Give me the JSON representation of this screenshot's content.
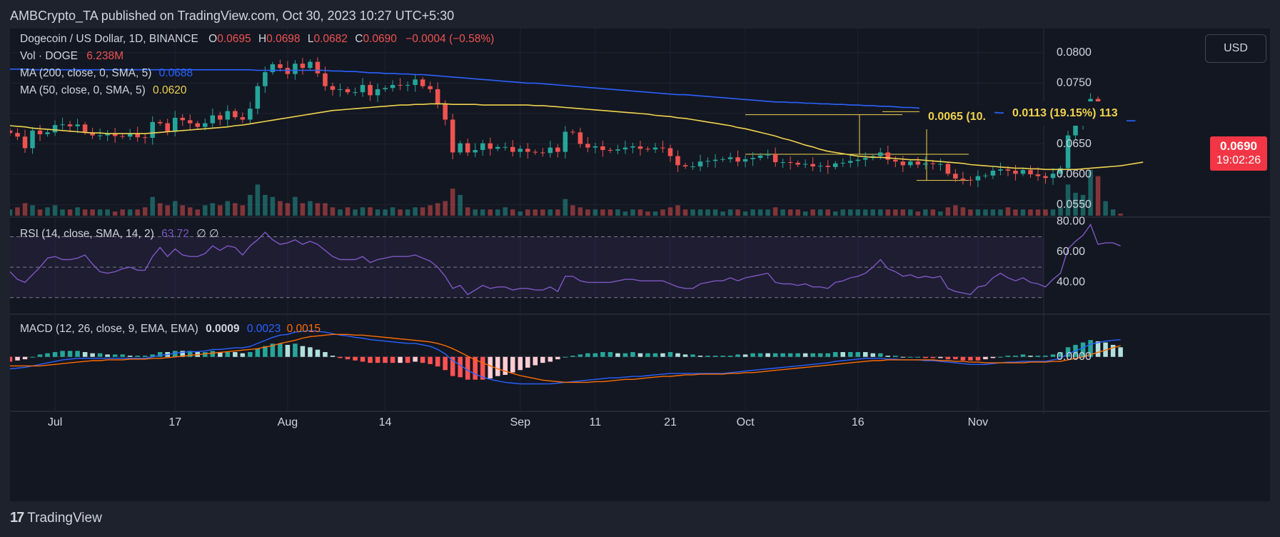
{
  "header": {
    "published": "AMBCrypto_TA published on TradingView.com, Oct 30, 2023 10:27 UTC+5:30"
  },
  "footer": {
    "brand": "TradingView",
    "logo_mark": "17"
  },
  "currency_button": "USD",
  "colors": {
    "bg": "#131722",
    "up": "#26a69a",
    "down": "#ef5350",
    "ma200": "#2962ff",
    "ma50": "#f0d34c",
    "rsi": "#7e57c2",
    "macd": "#2962ff",
    "signal": "#ff6d00",
    "hist_up_strong": "#26a69a",
    "hist_up_weak": "#b2dfdb",
    "hist_dn_strong": "#ff5252",
    "hist_dn_weak": "#ffcdd2"
  },
  "legend": {
    "symbol": "Dogecoin / US Dollar, 1D, BINANCE",
    "o_label": "O",
    "o": "0.0695",
    "h_label": "H",
    "h": "0.0698",
    "l_label": "L",
    "l": "0.0682",
    "c_label": "C",
    "c": "0.0690",
    "change": "−0.0004 (−0.58%)",
    "vol_label": "Vol · DOGE",
    "vol": "6.238M",
    "ma200_label": "MA (200, close, 0, SMA, 5)",
    "ma200": "0.0688",
    "ma50_label": "MA (50, close, 0, SMA, 5)",
    "ma50": "0.0620",
    "rsi_label": "RSI (14, close, SMA, 14, 2)",
    "rsi": "63.72",
    "rsi_extra": "∅  ∅",
    "macd_label": "MACD (12, 26, close, 9, EMA, EMA)",
    "macd": "0.0009",
    "macd_line": "0.0023",
    "macd_signal": "0.0015"
  },
  "price_tag": {
    "price": "0.0690",
    "countdown": "19:02:26"
  },
  "measure_labels": [
    "0.0065 (10.",
    "0.0113 (19.15%) 113"
  ],
  "chart_data": {
    "type": "candlestick",
    "title": "Dogecoin / US Dollar, 1D, BINANCE",
    "x_range": [
      "2023-06-25",
      "2023-11-09"
    ],
    "x_ticks": [
      {
        "date": "2023-07-01",
        "label": "Jul"
      },
      {
        "date": "2023-07-17",
        "label": "17"
      },
      {
        "date": "2023-08-01",
        "label": "Aug"
      },
      {
        "date": "2023-08-14",
        "label": "14"
      },
      {
        "date": "2023-09-01",
        "label": "Sep"
      },
      {
        "date": "2023-09-11",
        "label": "11"
      },
      {
        "date": "2023-09-21",
        "label": "21"
      },
      {
        "date": "2023-10-01",
        "label": "Oct"
      },
      {
        "date": "2023-10-16",
        "label": "16"
      },
      {
        "date": "2023-11-01",
        "label": "Nov"
      }
    ],
    "price_axis": {
      "ylim": [
        0.0532,
        0.0828
      ],
      "ticks": [
        "0.0800",
        "0.0750",
        "0.0700",
        "0.0650",
        "0.0600",
        "0.0550"
      ]
    },
    "rsi_axis": {
      "ylim": [
        20,
        82
      ],
      "ticks": [
        "80.00",
        "60.00",
        "40.00"
      ],
      "bands": [
        30,
        70
      ],
      "mid": 50
    },
    "macd_axis": {
      "ylim": [
        -0.0065,
        0.0055
      ],
      "ticks": [
        "0.0000"
      ]
    },
    "close": [
      0.0668,
      0.0662,
      0.0643,
      0.0672,
      0.0666,
      0.0669,
      0.0681,
      0.0682,
      0.0679,
      0.0682,
      0.0669,
      0.0664,
      0.0664,
      0.0667,
      0.0663,
      0.0662,
      0.0667,
      0.0661,
      0.066,
      0.0686,
      0.0684,
      0.067,
      0.0693,
      0.0689,
      0.0684,
      0.0678,
      0.0684,
      0.0697,
      0.069,
      0.0704,
      0.0694,
      0.069,
      0.0708,
      0.0745,
      0.0768,
      0.0781,
      0.0775,
      0.0765,
      0.0782,
      0.0775,
      0.0785,
      0.0766,
      0.0745,
      0.0739,
      0.074,
      0.0735,
      0.0735,
      0.0747,
      0.073,
      0.074,
      0.0742,
      0.0747,
      0.0746,
      0.0747,
      0.0756,
      0.0745,
      0.074,
      0.0716,
      0.069,
      0.0636,
      0.0651,
      0.0636,
      0.064,
      0.0651,
      0.0642,
      0.0645,
      0.0645,
      0.0637,
      0.0642,
      0.0637,
      0.0636,
      0.0635,
      0.0644,
      0.0637,
      0.067,
      0.0669,
      0.065,
      0.0644,
      0.0646,
      0.064,
      0.0639,
      0.0641,
      0.0644,
      0.0646,
      0.0642,
      0.0641,
      0.0644,
      0.0643,
      0.063,
      0.0615,
      0.0613,
      0.0613,
      0.0621,
      0.0622,
      0.0624,
      0.0625,
      0.0628,
      0.0621,
      0.0625,
      0.0627,
      0.0631,
      0.0633,
      0.062,
      0.062,
      0.0619,
      0.0616,
      0.0617,
      0.0613,
      0.0614,
      0.0612,
      0.0618,
      0.0619,
      0.0622,
      0.0624,
      0.0627,
      0.063,
      0.0636,
      0.0624,
      0.0621,
      0.0615,
      0.0621,
      0.0616,
      0.0618,
      0.0617,
      0.0617,
      0.0601,
      0.0593,
      0.0591,
      0.059,
      0.0597,
      0.0598,
      0.0606,
      0.0608,
      0.0606,
      0.0601,
      0.0607,
      0.06,
      0.0597,
      0.0594,
      0.0601,
      0.061,
      0.0664,
      0.0683,
      0.0698,
      0.0724,
      0.0689,
      0.0692,
      0.0696,
      0.069
    ],
    "open_offsets_note": "",
    "volume_rel": [
      0.3,
      0.4,
      0.6,
      0.5,
      0.3,
      0.4,
      0.5,
      0.3,
      0.3,
      0.4,
      0.3,
      0.3,
      0.3,
      0.3,
      0.2,
      0.3,
      0.3,
      0.3,
      0.4,
      0.9,
      0.6,
      0.5,
      0.7,
      0.5,
      0.4,
      0.3,
      0.5,
      0.6,
      0.5,
      0.7,
      0.6,
      0.5,
      1.0,
      1.5,
      1.0,
      0.9,
      0.7,
      0.6,
      0.9,
      0.6,
      0.7,
      0.6,
      0.6,
      0.4,
      0.3,
      0.4,
      0.3,
      0.4,
      0.4,
      0.3,
      0.3,
      0.4,
      0.3,
      0.3,
      0.4,
      0.4,
      0.5,
      0.6,
      0.7,
      1.3,
      1.0,
      0.4,
      0.3,
      0.3,
      0.3,
      0.3,
      0.4,
      0.3,
      0.2,
      0.3,
      0.3,
      0.3,
      0.3,
      0.3,
      0.8,
      0.5,
      0.4,
      0.3,
      0.3,
      0.3,
      0.3,
      0.3,
      0.2,
      0.3,
      0.3,
      0.2,
      0.2,
      0.3,
      0.4,
      0.5,
      0.3,
      0.3,
      0.3,
      0.3,
      0.3,
      0.2,
      0.3,
      0.3,
      0.2,
      0.3,
      0.3,
      0.3,
      0.4,
      0.3,
      0.3,
      0.3,
      0.2,
      0.3,
      0.3,
      0.3,
      0.2,
      0.3,
      0.3,
      0.3,
      0.3,
      0.3,
      0.3,
      0.3,
      0.3,
      0.3,
      0.3,
      0.2,
      0.3,
      0.3,
      0.2,
      0.4,
      0.5,
      0.4,
      0.3,
      0.3,
      0.3,
      0.3,
      0.3,
      0.4,
      0.3,
      0.3,
      0.3,
      0.3,
      0.3,
      0.3,
      0.4,
      1.5,
      1.1,
      1.0,
      2.2,
      1.9,
      0.7,
      0.3,
      0.1
    ],
    "ma50": [
      0.068,
      0.0679,
      0.0678,
      0.0676,
      0.0675,
      0.0674,
      0.0673,
      0.0672,
      0.0671,
      0.067,
      0.0669,
      0.0668,
      0.0668,
      0.0667,
      0.0667,
      0.0667,
      0.0667,
      0.0667,
      0.0667,
      0.0668,
      0.0669,
      0.067,
      0.0671,
      0.0672,
      0.0673,
      0.0674,
      0.0675,
      0.0676,
      0.0677,
      0.0678,
      0.068,
      0.0681,
      0.0683,
      0.0685,
      0.0687,
      0.0689,
      0.0691,
      0.0693,
      0.0695,
      0.0697,
      0.0699,
      0.0701,
      0.0703,
      0.0705,
      0.0706,
      0.0707,
      0.0708,
      0.0709,
      0.071,
      0.0711,
      0.0712,
      0.0713,
      0.0714,
      0.0714,
      0.0715,
      0.0715,
      0.0716,
      0.0716,
      0.0716,
      0.0715,
      0.0715,
      0.0715,
      0.0715,
      0.0714,
      0.0714,
      0.0714,
      0.0714,
      0.0714,
      0.0714,
      0.0714,
      0.0713,
      0.0713,
      0.0712,
      0.0711,
      0.071,
      0.0709,
      0.0708,
      0.0707,
      0.0706,
      0.0705,
      0.0704,
      0.0703,
      0.0702,
      0.0701,
      0.07,
      0.0699,
      0.0697,
      0.0696,
      0.0695,
      0.0693,
      0.0692,
      0.069,
      0.0688,
      0.0686,
      0.0684,
      0.0682,
      0.068,
      0.0677,
      0.0675,
      0.0672,
      0.0669,
      0.0666,
      0.0663,
      0.0659,
      0.0656,
      0.0652,
      0.0648,
      0.0645,
      0.0641,
      0.0638,
      0.0636,
      0.0634,
      0.0632,
      0.063,
      0.0629,
      0.0628,
      0.0628,
      0.0627,
      0.0626,
      0.0625,
      0.0624,
      0.0624,
      0.0623,
      0.0622,
      0.0621,
      0.062,
      0.0619,
      0.0618,
      0.0616,
      0.0615,
      0.0614,
      0.0613,
      0.0612,
      0.0611,
      0.061,
      0.061,
      0.0609,
      0.0609,
      0.0608,
      0.0608,
      0.0608,
      0.0608,
      0.0608,
      0.0609,
      0.061,
      0.0611,
      0.0612,
      0.0613,
      0.0614,
      0.0616,
      0.0618,
      0.062
    ],
    "ma200": [
      0.0773,
      0.0773,
      0.0773,
      0.0772,
      0.0772,
      0.0772,
      0.0772,
      0.0772,
      0.0772,
      0.0772,
      0.0772,
      0.0772,
      0.0772,
      0.0772,
      0.0772,
      0.0772,
      0.0772,
      0.0772,
      0.0772,
      0.0772,
      0.0772,
      0.0772,
      0.0772,
      0.0772,
      0.0772,
      0.0772,
      0.0772,
      0.0772,
      0.0772,
      0.0772,
      0.0772,
      0.0772,
      0.0772,
      0.0771,
      0.0771,
      0.0771,
      0.0771,
      0.0771,
      0.0771,
      0.0771,
      0.0771,
      0.0771,
      0.0771,
      0.077,
      0.077,
      0.0769,
      0.0769,
      0.0768,
      0.0767,
      0.0767,
      0.0766,
      0.0766,
      0.0765,
      0.0765,
      0.0764,
      0.0764,
      0.0763,
      0.0762,
      0.0761,
      0.076,
      0.0759,
      0.0758,
      0.0757,
      0.0756,
      0.0755,
      0.0754,
      0.0753,
      0.0752,
      0.0751,
      0.075,
      0.075,
      0.0749,
      0.0748,
      0.0747,
      0.0746,
      0.0745,
      0.0744,
      0.0743,
      0.0742,
      0.0741,
      0.074,
      0.0739,
      0.0738,
      0.0737,
      0.0736,
      0.0735,
      0.0734,
      0.0733,
      0.0732,
      0.0731,
      0.0731,
      0.073,
      0.0729,
      0.0728,
      0.0727,
      0.0726,
      0.0725,
      0.0724,
      0.0723,
      0.0722,
      0.0721,
      0.072,
      0.0719,
      0.0719,
      0.0718,
      0.0718,
      0.0717,
      0.0717,
      0.0716,
      0.0716,
      0.0715,
      0.0715,
      0.0714,
      0.0714,
      0.0713,
      0.0713,
      0.0712,
      0.0712,
      0.0711,
      0.071,
      0.071,
      0.0709,
      0.0708,
      0.0708,
      0.0707,
      0.0706,
      0.0706,
      0.0705,
      0.0704,
      0.0704,
      0.0703,
      0.0702,
      0.0701,
      0.0701,
      0.07,
      0.07,
      0.0699,
      0.0698,
      0.0697,
      0.0697,
      0.0696,
      0.0695,
      0.0694,
      0.0693,
      0.0692,
      0.0691,
      0.069,
      0.0689,
      0.0688,
      0.0688,
      0.0688
    ],
    "rsi": [
      47,
      42,
      40,
      45,
      50,
      56,
      57,
      55,
      55,
      56,
      58,
      52,
      47,
      46,
      47,
      49,
      50,
      48,
      48,
      57,
      63,
      57,
      62,
      58,
      57,
      57,
      59,
      64,
      61,
      64,
      63,
      58,
      64,
      68,
      73,
      68,
      65,
      66,
      68,
      65,
      67,
      65,
      61,
      57,
      55,
      55,
      55,
      57,
      53,
      55,
      56,
      57,
      57,
      57,
      58,
      56,
      54,
      50,
      44,
      36,
      38,
      32,
      35,
      38,
      36,
      37,
      37,
      35,
      36,
      36,
      35,
      35,
      37,
      34,
      44,
      44,
      41,
      40,
      40,
      40,
      40,
      41,
      42,
      42,
      41,
      41,
      41,
      41,
      39,
      37,
      36,
      36,
      39,
      40,
      41,
      41,
      43,
      41,
      43,
      44,
      45,
      46,
      40,
      39,
      39,
      38,
      39,
      37,
      37,
      36,
      40,
      41,
      43,
      44,
      46,
      50,
      55,
      49,
      47,
      44,
      45,
      43,
      44,
      43,
      44,
      36,
      34,
      33,
      32,
      37,
      38,
      43,
      46,
      43,
      41,
      43,
      40,
      39,
      37,
      42,
      46,
      62,
      67,
      71,
      78,
      65,
      66,
      66,
      64
    ],
    "macd": [
      -0.0016,
      -0.0015,
      -0.0014,
      -0.0012,
      -0.001,
      -0.0008,
      -0.0006,
      -0.0004,
      -0.0003,
      -0.0002,
      -0.0002,
      -0.0002,
      -0.0002,
      -0.0002,
      -0.0002,
      -0.0002,
      -0.0002,
      -0.0002,
      -0.0002,
      0.0,
      0.0002,
      0.0003,
      0.0005,
      0.0006,
      0.0007,
      0.0007,
      0.0008,
      0.001,
      0.001,
      0.0011,
      0.0012,
      0.0012,
      0.0014,
      0.0018,
      0.0022,
      0.0026,
      0.0029,
      0.003,
      0.0033,
      0.0034,
      0.0035,
      0.0034,
      0.0033,
      0.0031,
      0.0029,
      0.0028,
      0.0026,
      0.0025,
      0.0023,
      0.0022,
      0.0021,
      0.002,
      0.0019,
      0.0018,
      0.0018,
      0.0016,
      0.0014,
      0.001,
      0.0004,
      -0.0005,
      -0.0011,
      -0.0018,
      -0.0023,
      -0.0027,
      -0.003,
      -0.0032,
      -0.0034,
      -0.0035,
      -0.0036,
      -0.0036,
      -0.0036,
      -0.0036,
      -0.0036,
      -0.0035,
      -0.0034,
      -0.0033,
      -0.0032,
      -0.0031,
      -0.003,
      -0.0029,
      -0.0028,
      -0.0028,
      -0.0027,
      -0.0026,
      -0.0026,
      -0.0025,
      -0.0024,
      -0.0023,
      -0.0022,
      -0.0022,
      -0.0022,
      -0.0022,
      -0.0022,
      -0.0022,
      -0.0022,
      -0.0022,
      -0.0021,
      -0.002,
      -0.0019,
      -0.0018,
      -0.0017,
      -0.0016,
      -0.0015,
      -0.0014,
      -0.0013,
      -0.0012,
      -0.0011,
      -0.001,
      -0.0009,
      -0.0008,
      -0.0006,
      -0.0005,
      -0.0004,
      -0.0003,
      -0.0002,
      -0.0002,
      -0.0002,
      -0.0003,
      -0.0003,
      -0.0004,
      -0.0004,
      -0.0004,
      -0.0005,
      -0.0005,
      -0.0006,
      -0.0007,
      -0.0008,
      -0.0009,
      -0.001,
      -0.001,
      -0.001,
      -0.0009,
      -0.0008,
      -0.0007,
      -0.0007,
      -0.0006,
      -0.0006,
      -0.0006,
      -0.0006,
      -0.0004,
      -0.0002,
      0.0004,
      0.0008,
      0.0012,
      0.0017,
      0.0019,
      0.0021,
      0.0022,
      0.0023
    ],
    "signal": [
      -0.0012,
      -0.0012,
      -0.0012,
      -0.0012,
      -0.0012,
      -0.0011,
      -0.001,
      -0.0009,
      -0.0008,
      -0.0007,
      -0.0006,
      -0.0005,
      -0.0005,
      -0.0004,
      -0.0004,
      -0.0004,
      -0.0003,
      -0.0003,
      -0.0003,
      -0.0002,
      -0.0002,
      -0.0001,
      0.0,
      0.0001,
      0.0002,
      0.0003,
      0.0004,
      0.0005,
      0.0006,
      0.0007,
      0.0008,
      0.0009,
      0.001,
      0.0011,
      0.0013,
      0.0015,
      0.0018,
      0.002,
      0.0022,
      0.0025,
      0.0027,
      0.0028,
      0.0029,
      0.003,
      0.003,
      0.003,
      0.0029,
      0.0029,
      0.0028,
      0.0027,
      0.0026,
      0.0025,
      0.0024,
      0.0023,
      0.0022,
      0.0021,
      0.002,
      0.0018,
      0.0015,
      0.0011,
      0.0006,
      0.0001,
      -0.0004,
      -0.0008,
      -0.0012,
      -0.0016,
      -0.0019,
      -0.0022,
      -0.0025,
      -0.0027,
      -0.0029,
      -0.0031,
      -0.0032,
      -0.0033,
      -0.0034,
      -0.0034,
      -0.0034,
      -0.0034,
      -0.0033,
      -0.0033,
      -0.0032,
      -0.0031,
      -0.003,
      -0.003,
      -0.0029,
      -0.0028,
      -0.0027,
      -0.0026,
      -0.0026,
      -0.0025,
      -0.0024,
      -0.0024,
      -0.0023,
      -0.0023,
      -0.0023,
      -0.0023,
      -0.0022,
      -0.0022,
      -0.0021,
      -0.0021,
      -0.002,
      -0.0019,
      -0.0018,
      -0.0017,
      -0.0016,
      -0.0015,
      -0.0014,
      -0.0013,
      -0.0012,
      -0.0011,
      -0.001,
      -0.0009,
      -0.0008,
      -0.0007,
      -0.0006,
      -0.0005,
      -0.0005,
      -0.0004,
      -0.0004,
      -0.0004,
      -0.0004,
      -0.0004,
      -0.0004,
      -0.0004,
      -0.0005,
      -0.0005,
      -0.0006,
      -0.0006,
      -0.0007,
      -0.0007,
      -0.0008,
      -0.0008,
      -0.0008,
      -0.0008,
      -0.0008,
      -0.0008,
      -0.0007,
      -0.0007,
      -0.0007,
      -0.0006,
      -0.0006,
      -0.0004,
      -0.0002,
      0.0,
      0.0003,
      0.0006,
      0.0009,
      0.0012,
      0.0015
    ]
  }
}
